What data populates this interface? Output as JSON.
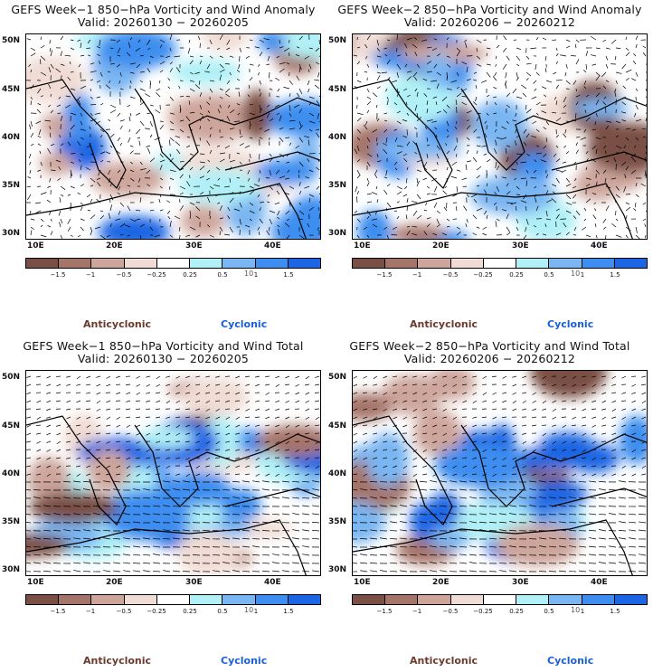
{
  "panels": [
    {
      "title": "GEFS Week−1 850−hPa Vorticity and Wind Anomaly",
      "valid": "Valid: 20260130 − 20260205"
    },
    {
      "title": "GEFS Week−2 850−hPa Vorticity and Wind Anomaly",
      "valid": "Valid: 20260206 − 20260212"
    },
    {
      "title": "GEFS Week−1 850−hPa Vorticity and Wind Total",
      "valid": "Valid: 20260130 − 20260205"
    },
    {
      "title": "GEFS Week−2 850−hPa Vorticity and Wind Total",
      "valid": "Valid: 20260206 − 20260212"
    }
  ],
  "lat_labels": [
    "50N",
    "45N",
    "40N",
    "35N",
    "30N"
  ],
  "lon_labels": [
    "10E",
    "20E",
    "30E",
    "40E"
  ],
  "colorbar": {
    "labels": [
      "−1.5",
      "−1",
      "−0.5",
      "−0.25",
      "0.25",
      "0.5",
      "1",
      "1.5"
    ],
    "colors": [
      "#7a4f45",
      "#a67569",
      "#cda59b",
      "#f0dcd4",
      "#ffffff",
      "#b0f0f6",
      "#7ab6f2",
      "#3d8ef0",
      "#1c66e4"
    ]
  },
  "vector_scale": "10",
  "legend": {
    "anticyclonic": "Anticyclonic",
    "cyclonic": "Cyclonic",
    "anticyclonic_color": "#6b3a2e",
    "cyclonic_color": "#1a5fd6"
  }
}
